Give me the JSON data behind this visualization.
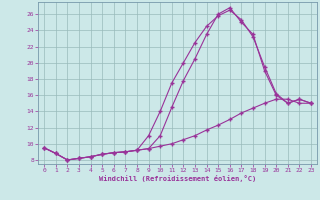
{
  "xlabel": "Windchill (Refroidissement éolien,°C)",
  "bg_color": "#cce8e8",
  "line_color": "#993399",
  "grid_color": "#99bbbb",
  "xlim": [
    -0.5,
    23.5
  ],
  "ylim": [
    7.5,
    27.5
  ],
  "yticks": [
    8,
    10,
    12,
    14,
    16,
    18,
    20,
    22,
    24,
    26
  ],
  "xticks": [
    0,
    1,
    2,
    3,
    4,
    5,
    6,
    7,
    8,
    9,
    10,
    11,
    12,
    13,
    14,
    15,
    16,
    17,
    18,
    19,
    20,
    21,
    22,
    23
  ],
  "line1_x": [
    0,
    1,
    2,
    3,
    4,
    5,
    6,
    7,
    8,
    9,
    10,
    11,
    12,
    13,
    14,
    15,
    16,
    17,
    18,
    19,
    20,
    21,
    22,
    23
  ],
  "line1_y": [
    9.5,
    8.8,
    8.0,
    8.2,
    8.4,
    8.7,
    8.9,
    9.0,
    9.2,
    9.4,
    9.7,
    10.0,
    10.5,
    11.0,
    11.7,
    12.3,
    13.0,
    13.8,
    14.4,
    15.0,
    15.5,
    15.5,
    15.0,
    15.0
  ],
  "line2_x": [
    0,
    1,
    2,
    3,
    4,
    5,
    6,
    7,
    8,
    9,
    10,
    11,
    12,
    13,
    14,
    15,
    16,
    17,
    18,
    19,
    20,
    21,
    22,
    23
  ],
  "line2_y": [
    9.5,
    8.8,
    8.0,
    8.2,
    8.4,
    8.7,
    8.9,
    9.0,
    9.2,
    9.4,
    11.0,
    14.5,
    17.8,
    20.5,
    23.5,
    26.0,
    26.8,
    25.0,
    23.5,
    19.0,
    16.0,
    15.0,
    15.5,
    15.0
  ],
  "line3_x": [
    0,
    1,
    2,
    3,
    4,
    5,
    6,
    7,
    8,
    9,
    10,
    11,
    12,
    13,
    14,
    15,
    16,
    17,
    18,
    19,
    20,
    21,
    22,
    23
  ],
  "line3_y": [
    9.5,
    8.8,
    8.0,
    8.2,
    8.4,
    8.7,
    8.9,
    9.0,
    9.2,
    11.0,
    14.0,
    17.5,
    20.0,
    22.5,
    24.5,
    25.8,
    26.5,
    25.3,
    23.2,
    19.5,
    16.2,
    15.0,
    15.5,
    15.0
  ]
}
